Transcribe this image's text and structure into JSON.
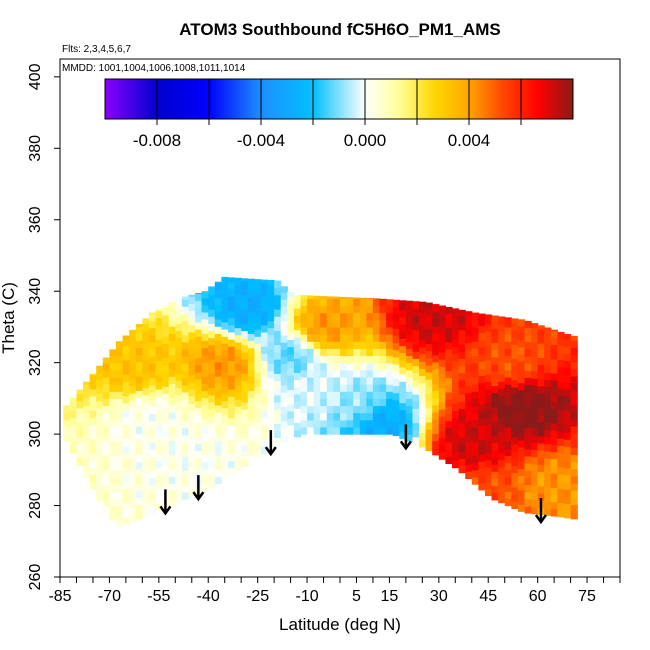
{
  "chart_data": {
    "type": "heatmap",
    "title": "ATOM3 Southbound fC5H6O_PM1_AMS",
    "subtitle_flights": "Flts: 2,3,4,5,6,7",
    "subtitle_dates": "MMDD: 1001,1004,1006,1008,1011,1014",
    "xlabel": "Latitude (deg N)",
    "ylabel": "Theta (C)",
    "xlim": [
      -85,
      85
    ],
    "ylim": [
      260,
      405
    ],
    "x_ticks": [
      -85,
      -70,
      -55,
      -40,
      -25,
      -10,
      5,
      15,
      30,
      45,
      60,
      75
    ],
    "x_tick_labels": [
      "-85",
      "-70",
      "-55",
      "-40",
      "-25",
      "-10",
      "5",
      "15",
      "30",
      "45",
      "60",
      "75"
    ],
    "y_ticks": [
      260,
      280,
      300,
      320,
      340,
      360,
      380,
      400
    ],
    "y_tick_labels": [
      "260",
      "280",
      "300",
      "320",
      "340",
      "360",
      "380",
      "400"
    ],
    "colorbar": {
      "range": [
        -0.01,
        0.008
      ],
      "ticks": [
        -0.008,
        -0.004,
        0.0,
        0.004
      ],
      "tick_labels": [
        "-0.008",
        "-0.004",
        "0.000",
        "0.004"
      ],
      "stops": [
        "#8B00FF",
        "#0000CD",
        "#0000FF",
        "#1E90FF",
        "#00BFFF",
        "#FFFFFF",
        "#FFFF99",
        "#FFD700",
        "#FFA500",
        "#FF4500",
        "#FF0000",
        "#8B1A1A"
      ]
    },
    "field_hotspots": [
      {
        "lat": -15,
        "theta": 322,
        "value": -0.0025
      },
      {
        "lat": -28,
        "theta": 335,
        "value": -0.004
      },
      {
        "lat": 12,
        "theta": 303,
        "value": -0.004
      },
      {
        "lat": -8,
        "theta": 312,
        "value": -0.0015
      },
      {
        "lat": 5,
        "theta": 308,
        "value": -0.002
      },
      {
        "lat": -58,
        "theta": 305,
        "value": -0.001
      },
      {
        "lat": -45,
        "theta": 295,
        "value": -0.001
      },
      {
        "lat": -5,
        "theta": 330,
        "value": 0.003
      },
      {
        "lat": 28,
        "theta": 333,
        "value": 0.006
      },
      {
        "lat": 40,
        "theta": 298,
        "value": 0.006
      },
      {
        "lat": 55,
        "theta": 308,
        "value": 0.007
      },
      {
        "lat": 52,
        "theta": 320,
        "value": 0.004
      },
      {
        "lat": -35,
        "theta": 320,
        "value": 0.003
      },
      {
        "lat": -62,
        "theta": 318,
        "value": 0.002
      },
      {
        "lat": 45,
        "theta": 283,
        "value": 0.004
      },
      {
        "lat": 65,
        "theta": 285,
        "value": 0.003
      }
    ],
    "arrows_lat": [
      -53,
      -43,
      -21,
      20,
      61
    ]
  }
}
